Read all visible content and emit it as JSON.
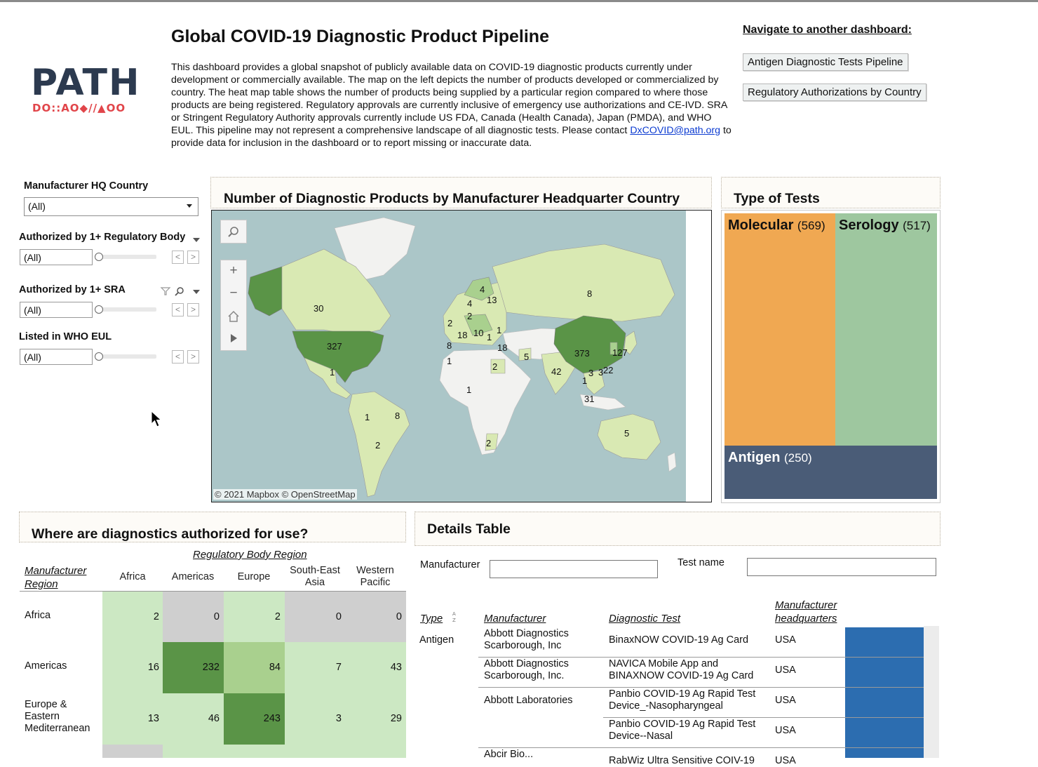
{
  "header": {
    "title": "Global COVID-19 Diagnostic Product Pipeline",
    "description_before_link": "This dashboard provides a global snapshot of publicly available data on COVID-19 diagnostic products currently under development or commercially available. The map on the left depicts the number of products developed or commercialized by country. The heat map table shows the number of products being supplied by a particular region compared to where those products are being registered. Regulatory approvals are currently inclusive of emergency use authorizations and CE-IVD. SRA or Stringent Regulatory Authority approvals currently include US FDA, Canada (Health Canada), Japan (PMDA), and WHO EUL. This pipeline may not represent a comprehensive landscape of all diagnostic tests. Please contact ",
    "description_link": "DxCOVID@path.org",
    "description_after_link": " to provide data for inclusion in the dashboard or to report missing or inaccurate data."
  },
  "logo": {
    "word": "PATH",
    "symbols": "DO::AO◆//▲OO",
    "symbol_color": "#e1454a",
    "word_color": "#2c3a4f"
  },
  "navigation": {
    "title": "Navigate to another dashboard:",
    "buttons": [
      "Antigen Diagnostic Tests Pipeline",
      "Regulatory Authorizations by Country"
    ]
  },
  "filters": {
    "hq_country": {
      "label": "Manufacturer HQ Country",
      "value": "(All)"
    },
    "regulatory_body": {
      "label": "Authorized by 1+ Regulatory Body",
      "value": "(All)"
    },
    "sra": {
      "label": "Authorized by 1+ SRA",
      "value": "(All)"
    },
    "who_eul": {
      "label": "Listed in WHO EUL",
      "value": "(All)"
    }
  },
  "map": {
    "title": "Number of Diagnostic Products by Manufacturer Headquarter Country",
    "credit": "© 2021 Mapbox © OpenStreetMap",
    "counts": [
      "30",
      "327",
      "1",
      "1",
      "8",
      "2",
      "8",
      "4",
      "4",
      "13",
      "2",
      "2",
      "18",
      "10",
      "1",
      "1",
      "18",
      "1",
      "2",
      "1",
      "5",
      "42",
      "373",
      "127",
      "1",
      "3",
      "3",
      "22",
      "31",
      "8",
      "5",
      "2"
    ],
    "colors": {
      "water": "#abc6c8",
      "land": "#f2f2f0",
      "low": "#d9e9b3",
      "mid": "#a9d08e",
      "high": "#5a9447"
    }
  },
  "treemap": {
    "title": "Type of Tests",
    "tiles": [
      {
        "name": "Molecular",
        "count": "(569)",
        "color": "#f0a852"
      },
      {
        "name": "Serology",
        "count": "(517)",
        "color": "#9ec79f"
      },
      {
        "name": "Antigen",
        "count": "(250)",
        "color": "#4a5c77"
      }
    ]
  },
  "heatmap": {
    "title": "Where are diagnostics authorized for use?",
    "col_group": "Regulatory Body Region",
    "row_group_line1": "Manufacturer",
    "row_group_line2": "Region",
    "columns": [
      "Africa",
      "Americas",
      "Europe",
      "South-East Asia",
      "Western Pacific"
    ],
    "column_lines": [
      [
        "Africa"
      ],
      [
        "Americas"
      ],
      [
        "Europe"
      ],
      [
        "South-East",
        "Asia"
      ],
      [
        "Western",
        "Pacific"
      ]
    ],
    "rows": [
      {
        "label_lines": [
          "Africa"
        ],
        "values": [
          "2",
          "0",
          "2",
          "0",
          "0"
        ]
      },
      {
        "label_lines": [
          "Americas"
        ],
        "values": [
          "16",
          "232",
          "84",
          "7",
          "43"
        ]
      },
      {
        "label_lines": [
          "Europe &",
          "Eastern",
          "Mediterranean"
        ],
        "values": [
          "13",
          "46",
          "243",
          "3",
          "29"
        ]
      }
    ]
  },
  "details": {
    "title": "Details Table",
    "manufacturer_label": "Manufacturer",
    "manufacturer_value": "",
    "testname_label": "Test name",
    "testname_value": "",
    "columns": {
      "type": "Type",
      "manufacturer": "Manufacturer",
      "test": "Diagnostic Test",
      "hq_line1": "Manufacturer",
      "hq_line2": "headquarters"
    },
    "rows": [
      {
        "type": "Antigen",
        "manufacturer": "Abbott Diagnostics Scarborough, Inc",
        "test": "BinaxNOW COVID-19 Ag Card",
        "hq": "USA"
      },
      {
        "type": "",
        "manufacturer": "Abbott Diagnostics Scarborough, Inc.",
        "test": "NAVICA Mobile App and BINAXNOW COVID-19 Ag Card",
        "hq": "USA"
      },
      {
        "type": "",
        "manufacturer": "Abbott Laboratories",
        "test": "Panbio COVID-19 Ag Rapid Test Device_-Nasopharyngeal",
        "hq": "USA"
      },
      {
        "type": "",
        "manufacturer": "",
        "test": "Panbio COVID-19 Ag Rapid Test Device--Nasal",
        "hq": "USA"
      },
      {
        "type": "",
        "manufacturer": "Abcir Bio...",
        "test": "RabWiz Ultra Sensitive COIV-19",
        "hq": "USA"
      }
    ]
  }
}
